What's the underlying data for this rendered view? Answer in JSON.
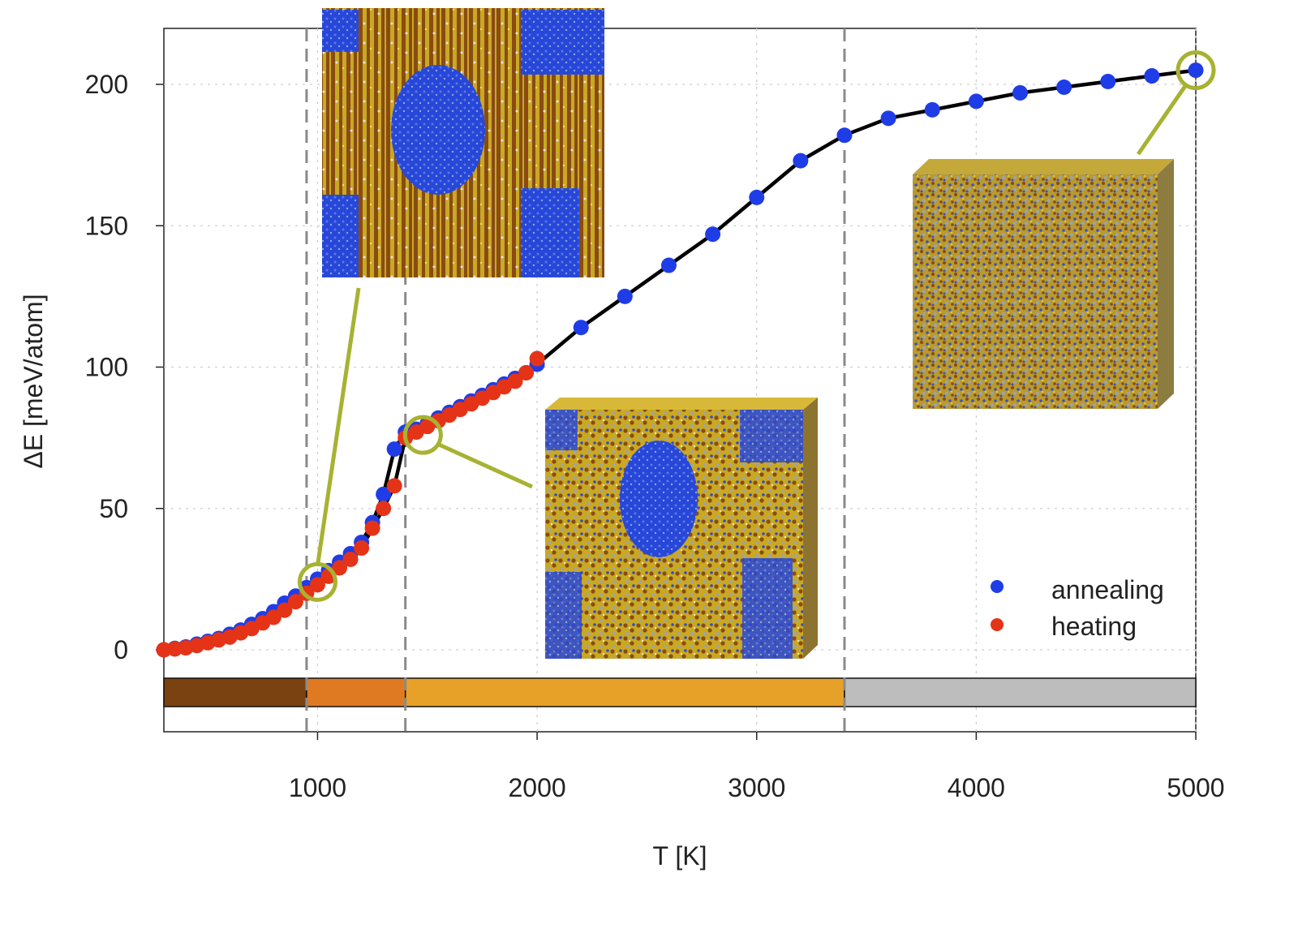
{
  "chart_data": {
    "type": "scatter",
    "xlabel": "T [K]",
    "ylabel": "ΔE [meV/atom]",
    "xlim": [
      300,
      5000
    ],
    "ylim": [
      -28,
      220
    ],
    "x_ticks": [
      1000,
      2000,
      3000,
      4000,
      5000
    ],
    "y_ticks": [
      0,
      50,
      100,
      150,
      200
    ],
    "grid": true,
    "legend_position": "bottom-right",
    "series": [
      {
        "name": "annealing",
        "color": "#1f3de6",
        "x": [
          300,
          350,
          400,
          450,
          500,
          550,
          600,
          650,
          700,
          750,
          800,
          850,
          900,
          950,
          1000,
          1050,
          1100,
          1150,
          1200,
          1250,
          1300,
          1350,
          1400,
          1450,
          1500,
          1550,
          1600,
          1650,
          1700,
          1750,
          1800,
          1850,
          1900,
          1950,
          2000,
          2200,
          2400,
          2600,
          2800,
          3000,
          3200,
          3400,
          3600,
          3800,
          4000,
          4200,
          4400,
          4600,
          4800,
          5000
        ],
        "y": [
          0,
          0.5,
          1,
          2,
          3,
          4,
          5.5,
          7,
          9,
          11,
          13.5,
          16.5,
          19,
          22,
          25,
          28,
          31,
          34,
          38,
          45,
          55,
          71,
          77,
          78,
          80,
          82,
          84,
          86,
          88,
          90,
          92,
          94,
          96,
          98,
          101,
          114,
          125,
          136,
          147,
          160,
          173,
          182,
          188,
          191,
          194,
          197,
          199,
          201,
          203,
          205
        ]
      },
      {
        "name": "heating",
        "color": "#e53318",
        "x": [
          300,
          350,
          400,
          450,
          500,
          550,
          600,
          650,
          700,
          750,
          800,
          850,
          900,
          950,
          1000,
          1050,
          1100,
          1150,
          1200,
          1250,
          1300,
          1350,
          1400,
          1450,
          1500,
          1550,
          1600,
          1650,
          1700,
          1750,
          1800,
          1850,
          1900,
          1950,
          2000
        ],
        "y": [
          0,
          0.3,
          0.7,
          1.5,
          2.5,
          3.5,
          4.5,
          6,
          7.5,
          9.5,
          11.5,
          14,
          17,
          20,
          23,
          26,
          29,
          32,
          36,
          43,
          50,
          58,
          75,
          77,
          79,
          81,
          83,
          85,
          87,
          89,
          91,
          93,
          95,
          98,
          103
        ]
      }
    ],
    "phase_bar": [
      {
        "from": 300,
        "to": 950,
        "color": "#7a4210"
      },
      {
        "from": 950,
        "to": 1400,
        "color": "#df7a22"
      },
      {
        "from": 1400,
        "to": 3400,
        "color": "#e8a128"
      },
      {
        "from": 3400,
        "to": 5000,
        "color": "#bdbdbd"
      }
    ],
    "phase_boundaries": [
      950,
      1400,
      3400
    ],
    "highlight_points": [
      {
        "x": 1000,
        "y": 24
      },
      {
        "x": 1480,
        "y": 76
      },
      {
        "x": 5000,
        "y": 205
      }
    ],
    "insets": [
      {
        "name": "inset-ordered-1000K",
        "pattern": "ordered"
      },
      {
        "name": "inset-partial-1480K",
        "pattern": "partial"
      },
      {
        "name": "inset-disordered-5000K",
        "pattern": "disordered"
      }
    ],
    "colors": {
      "highlight": "#a7b232",
      "curve": "#000000",
      "gold": "#c9a823",
      "brown": "#8a4b12",
      "blue": "#2f4ccc",
      "grey": "#9aa4b0"
    }
  }
}
